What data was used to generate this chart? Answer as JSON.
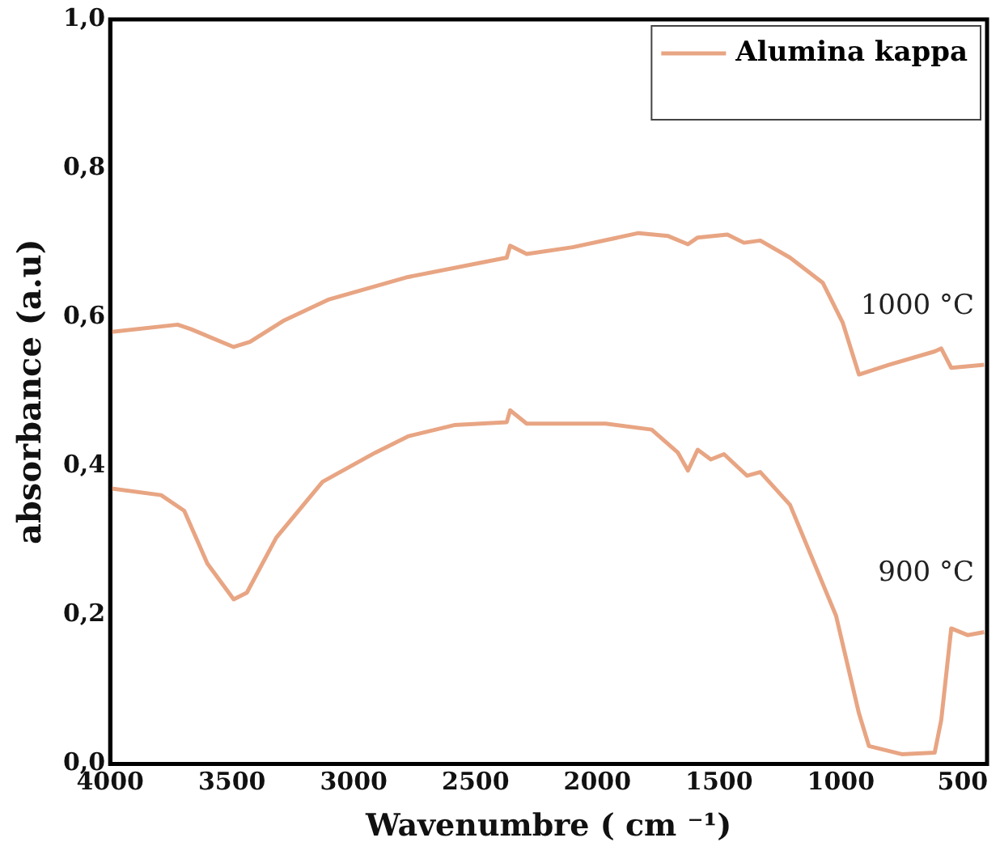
{
  "chart_data": {
    "type": "line",
    "xlabel": "Wavenumbre ( cm ⁻¹)",
    "ylabel": "absorbance (a.u)",
    "xlim": [
      4000,
      400
    ],
    "xticks": [
      4000,
      3500,
      3000,
      2500,
      2000,
      1500,
      1000,
      500
    ],
    "ylim": [
      0,
      1
    ],
    "yticks": [
      {
        "value": 0,
        "label": "0,0"
      },
      {
        "value": 0.2,
        "label": "0,2"
      },
      {
        "value": 0.4,
        "label": "0,4"
      },
      {
        "value": 0.6,
        "label": "0,6"
      },
      {
        "value": 0.8,
        "label": "0,8"
      },
      {
        "value": 1,
        "label": "1,0"
      }
    ],
    "grid": false,
    "legend": "top right",
    "marker": "none",
    "line_style": "solid",
    "annotations": [
      "1000 °C",
      "900 °C"
    ],
    "series": [
      {
        "name": "Alumina kappa",
        "color": "#e8a583",
        "x": [
          4000,
          3723,
          3669,
          3493,
          3426,
          3290,
          3101,
          2777,
          2372,
          2358,
          2290,
          2101,
          1831,
          1709,
          1628,
          1588,
          1466,
          1398,
          1331,
          1209,
          1074,
          993,
          926,
          804,
          615,
          588,
          547,
          412
        ],
        "values": [
          0.58,
          0.59,
          0.584,
          0.56,
          0.567,
          0.595,
          0.624,
          0.654,
          0.68,
          0.696,
          0.685,
          0.694,
          0.713,
          0.709,
          0.698,
          0.707,
          0.711,
          0.7,
          0.703,
          0.68,
          0.646,
          0.593,
          0.523,
          0.536,
          0.554,
          0.558,
          0.532,
          0.536
        ]
      },
      {
        "color": "#e8a583",
        "x": [
          4000,
          3791,
          3696,
          3601,
          3493,
          3439,
          3318,
          3128,
          2912,
          2777,
          2588,
          2372,
          2358,
          2290,
          1966,
          1777,
          1669,
          1628,
          1588,
          1534,
          1480,
          1385,
          1331,
          1209,
          1020,
          926,
          885,
          750,
          615,
          588,
          547,
          480,
          412
        ],
        "values": [
          0.37,
          0.361,
          0.34,
          0.269,
          0.221,
          0.23,
          0.304,
          0.379,
          0.418,
          0.44,
          0.455,
          0.459,
          0.475,
          0.457,
          0.457,
          0.449,
          0.418,
          0.394,
          0.422,
          0.409,
          0.416,
          0.387,
          0.392,
          0.348,
          0.199,
          0.068,
          0.024,
          0.013,
          0.015,
          0.059,
          0.182,
          0.173,
          0.177
        ]
      }
    ]
  }
}
